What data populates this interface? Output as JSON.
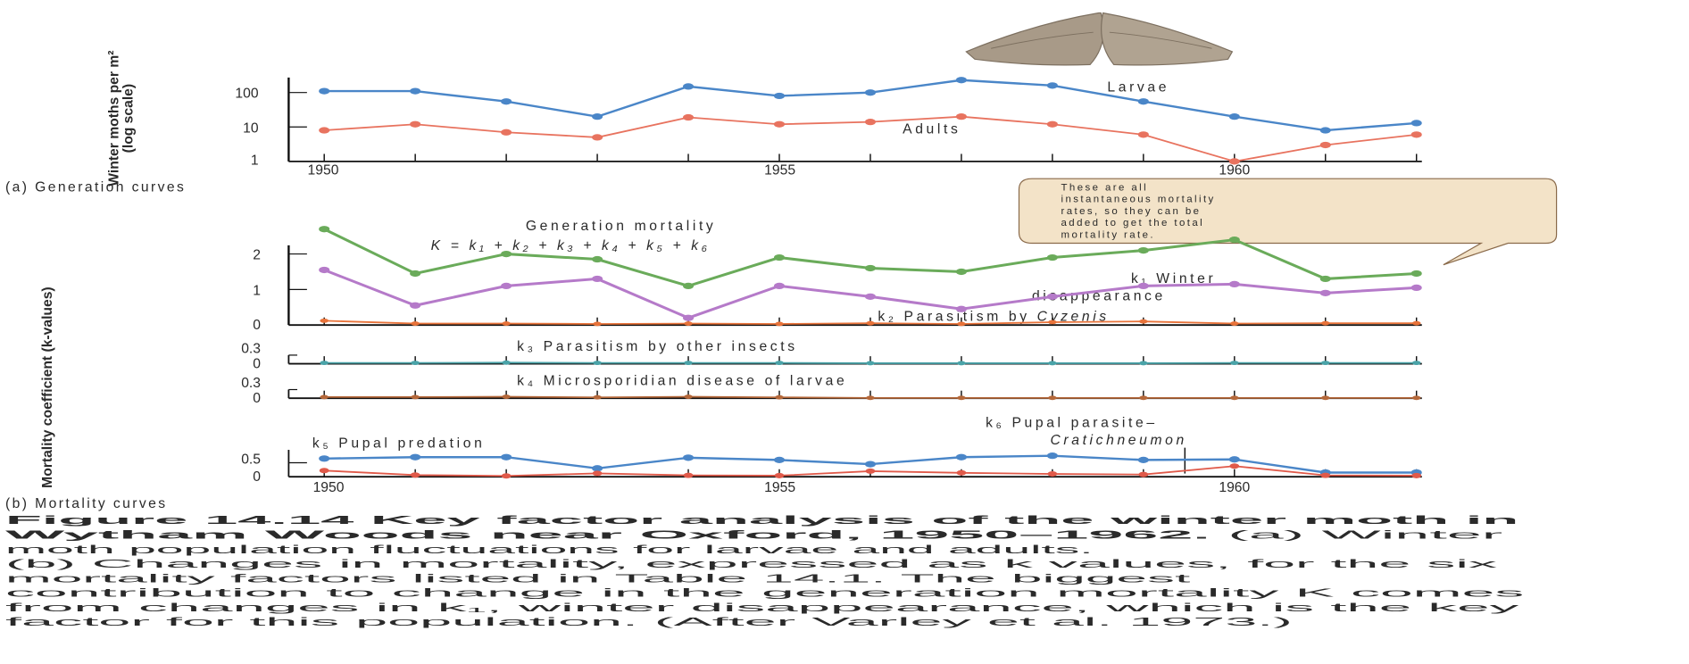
{
  "callout": {
    "lines": [
      "These are all",
      "instantaneous mortality",
      "rates, so they can be",
      "added to get the total",
      "mortality rate."
    ]
  },
  "caption": {
    "line1_bold": "Figure 14.14  Key factor analysis of the winter moth in",
    "line2_bold": "Wytham Woods near Oxford, 1950–1962.",
    "line2_rest": " (a) Winter",
    "line3": "moth population fluctuations for larvae and adults.",
    "line4": "(b) Changes in mortality, expressed as k values, for the six",
    "line5": "mortality factors listed in Table 14.1. The biggest",
    "line6": "contribution to change in the generation mortality K comes",
    "line7": "from changes in k₁, winter disappearance, which is the key",
    "line8": "factor for this population. (After Varley et al. 1973.)"
  },
  "colors": {
    "larvae": "#4a86c8",
    "adults": "#e8735f",
    "K": "#6aab5a",
    "k1": "#b57ac9",
    "k2": "#e8733a",
    "k3": "#4aa3a8",
    "k4": "#b5683a",
    "k5": "#4a86c8",
    "k6": "#e05a4a",
    "callout_fill": "#f3e3c8",
    "callout_border": "#8a6a4a"
  },
  "chart_data": [
    {
      "type": "line",
      "panel_label": "(a) Generation curves",
      "ylabel": "Winter moths per m² (log scale)",
      "yscale": "log",
      "ylim": [
        1,
        300
      ],
      "yticks": [
        "100",
        "10",
        "1"
      ],
      "x": [
        1950,
        1951,
        1952,
        1953,
        1954,
        1955,
        1956,
        1957,
        1958,
        1959,
        1960,
        1961,
        1962
      ],
      "xtick_labels": [
        "1950",
        "1955",
        "1960"
      ],
      "series": [
        {
          "name": "Larvae",
          "values": [
            110,
            110,
            55,
            20,
            150,
            80,
            100,
            230,
            160,
            55,
            20,
            8,
            13
          ]
        },
        {
          "name": "Adults",
          "values": [
            8,
            12,
            7,
            5,
            19,
            12,
            14,
            20,
            12,
            6,
            1,
            3,
            6
          ]
        }
      ]
    },
    {
      "type": "line",
      "panel_label": "(b) Mortality curves",
      "ylabel": "Mortality coefficient (k-values)",
      "x": [
        1950,
        1951,
        1952,
        1953,
        1954,
        1955,
        1956,
        1957,
        1958,
        1959,
        1960,
        1961,
        1962
      ],
      "xtick_labels": [
        "1950",
        "1955",
        "1960"
      ],
      "main_yticks": [
        "2",
        "1",
        "0"
      ],
      "small_yticks": [
        "0.3",
        "0"
      ],
      "k5_yticks": [
        "0.5",
        "0"
      ],
      "generation_label": "Generation mortality",
      "formula": "K = k₁ + k₂ + k₃ + k₄ + k₅ + k₆",
      "series": [
        {
          "name": "K",
          "values": [
            2.7,
            1.45,
            2.0,
            1.85,
            1.1,
            1.9,
            1.6,
            1.5,
            1.9,
            2.1,
            2.4,
            1.3,
            1.45
          ]
        },
        {
          "name": "k₁ Winter disappearance",
          "label1": "k₁ Winter",
          "label2": "disappearance",
          "values": [
            1.55,
            0.55,
            1.1,
            1.3,
            0.2,
            1.1,
            0.8,
            0.45,
            0.8,
            1.1,
            1.15,
            0.9,
            1.05
          ]
        },
        {
          "name": "k₂ Parasitism by Cyzenis",
          "label1": "k₂ Parasitism by ",
          "label2": "Cyzenis",
          "values": [
            0.12,
            0.04,
            0.04,
            0.03,
            0.04,
            0.03,
            0.05,
            0.03,
            0.08,
            0.1,
            0.04,
            0.05,
            0.05
          ]
        },
        {
          "name": "k₃ Parasitism by other insects",
          "values": [
            0.03,
            0.03,
            0.04,
            0.03,
            0.03,
            0.03,
            0.02,
            0.02,
            0.02,
            0.02,
            0.03,
            0.03,
            0.03
          ]
        },
        {
          "name": "k₄ Microsporidian disease of larvae",
          "values": [
            0.04,
            0.04,
            0.05,
            0.03,
            0.05,
            0.03,
            0.01,
            0.01,
            0.01,
            0.01,
            0.01,
            0.01,
            0.01
          ]
        },
        {
          "name": "k₅ Pupal predation",
          "values": [
            0.65,
            0.7,
            0.7,
            0.3,
            0.68,
            0.6,
            0.45,
            0.7,
            0.75,
            0.6,
            0.62,
            0.15,
            0.15
          ]
        },
        {
          "name": "k₆ Pupal parasite–Cratichneumon",
          "label1": "k₆ Pupal parasite–",
          "label2": "Cratichneumon",
          "values": [
            0.22,
            0.06,
            0.03,
            0.12,
            0.05,
            0.04,
            0.2,
            0.14,
            0.1,
            0.08,
            0.38,
            0.05,
            0.04
          ]
        }
      ]
    }
  ]
}
